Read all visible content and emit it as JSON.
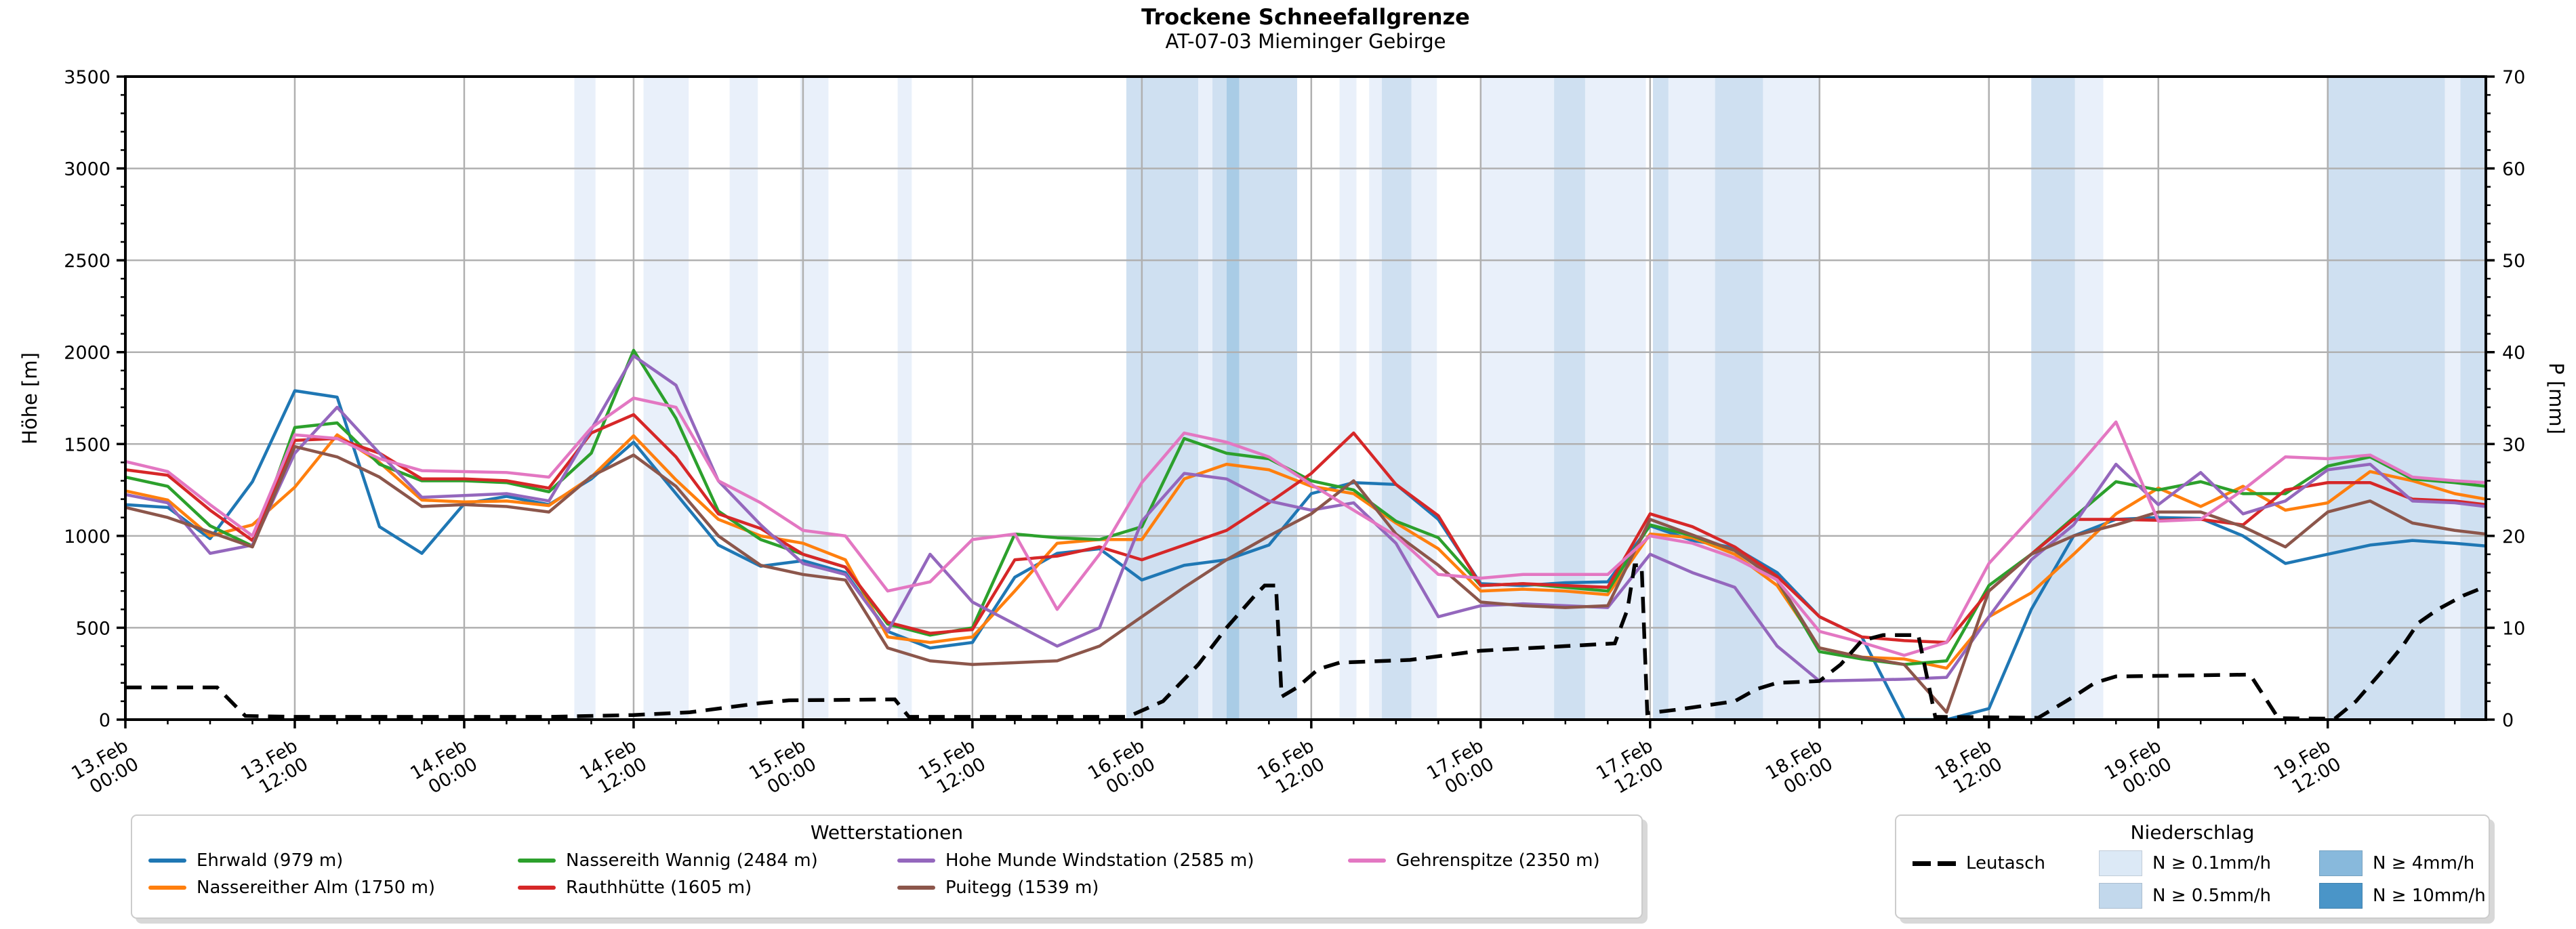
{
  "title": {
    "main": "Trockene Schneefallgrenze",
    "sub": "AT-07-03 Mieminger Gebirge"
  },
  "legends": {
    "stations": {
      "title": "Wetterstationen",
      "entries": [
        {
          "label": "Ehrwald (979 m)",
          "color": "#1f77b4"
        },
        {
          "label": "Nassereith Wannig (2484 m)",
          "color": "#2ca02c"
        },
        {
          "label": "Hohe Munde Windstation (2585 m)",
          "color": "#9467bd"
        },
        {
          "label": "Gehrenspitze (2350 m)",
          "color": "#e377c2"
        },
        {
          "label": "Nassereither Alm (1750 m)",
          "color": "#ff7f0e"
        },
        {
          "label": "Rauthhütte (1605 m)",
          "color": "#d62728"
        },
        {
          "label": "Puitegg (1539 m)",
          "color": "#8c564b"
        }
      ]
    },
    "precip": {
      "title": "Niederschlag",
      "line_entry": {
        "label": "Leutasch",
        "color": "#000000"
      },
      "patches": [
        {
          "label": "N ≥ 0.1mm/h",
          "color": "#dce9f6",
          "level": 1
        },
        {
          "label": "N ≥ 0.5mm/h",
          "color": "#c2d8ec",
          "level": 2
        },
        {
          "label": "N ≥ 4mm/h",
          "color": "#88b9dc",
          "level": 3
        },
        {
          "label": "N ≥ 10mm/h",
          "color": "#4a95c8",
          "level": 4
        }
      ]
    }
  },
  "chart_data": {
    "type": "line",
    "y_left_label": "Höhe [m]",
    "y_right_label": "P [mm]",
    "ylim_left": [
      0,
      3500
    ],
    "ylim_right": [
      0,
      70
    ],
    "y_left_ticks": [
      0,
      500,
      1000,
      1500,
      2000,
      2500,
      3000,
      3500
    ],
    "y_right_ticks": [
      0,
      10,
      20,
      30,
      40,
      50,
      60,
      70
    ],
    "x_unit": "hours since 13.Feb 00:00",
    "x_domain": [
      0,
      167.2
    ],
    "x_tick_hours": [
      0,
      12,
      24,
      36,
      48,
      60,
      72,
      84,
      96,
      108,
      120,
      132,
      144,
      156
    ],
    "x_tick_labels": [
      "13.Feb\n00:00",
      "13.Feb\n12:00",
      "14.Feb\n00:00",
      "14.Feb\n12:00",
      "15.Feb\n00:00",
      "15.Feb\n12:00",
      "16.Feb\n00:00",
      "16.Feb\n12:00",
      "17.Feb\n00:00",
      "17.Feb\n12:00",
      "18.Feb\n00:00",
      "18.Feb\n12:00",
      "19.Feb\n00:00",
      "19.Feb\n12:00"
    ],
    "x_minor_step_hours": 3,
    "y_left_minor_step": 100,
    "y_right_minor_step": 2,
    "sample_step_hours": 3,
    "series": [
      {
        "name": "ehrwald",
        "station": "Ehrwald",
        "elevation_m": 979,
        "color": "#1f77b4",
        "values_m": [
          1170,
          1155,
          985,
          1295,
          1790,
          1755,
          1050,
          905,
          1175,
          1215,
          1170,
          1310,
          1510,
          1230,
          950,
          835,
          865,
          800,
          480,
          390,
          420,
          775,
          905,
          930,
          760,
          840,
          870,
          950,
          1230,
          1290,
          1280,
          1090,
          740,
          730,
          745,
          750,
          1055,
          975,
          935,
          800,
          560,
          450,
          0,
          0,
          60,
          600,
          1000,
          1090,
          1100,
          1095,
          1000,
          850,
          900,
          950,
          975,
          960,
          945
        ]
      },
      {
        "name": "nassereither-alm",
        "station": "Nassereither Alm",
        "elevation_m": 1750,
        "color": "#ff7f0e",
        "values_m": [
          1245,
          1195,
          1000,
          1060,
          1265,
          1550,
          1400,
          1195,
          1185,
          1190,
          1165,
          1320,
          1545,
          1305,
          1090,
          1000,
          960,
          870,
          450,
          420,
          450,
          700,
          960,
          980,
          980,
          1310,
          1390,
          1360,
          1270,
          1230,
          1070,
          930,
          700,
          710,
          700,
          680,
          1010,
          990,
          900,
          730,
          390,
          340,
          330,
          280,
          560,
          690,
          900,
          1120,
          1260,
          1160,
          1270,
          1140,
          1180,
          1350,
          1300,
          1230,
          1200
        ]
      },
      {
        "name": "nassereith-wannig",
        "station": "Nassereith Wannig",
        "elevation_m": 2484,
        "color": "#2ca02c",
        "values_m": [
          1320,
          1270,
          1055,
          945,
          1590,
          1615,
          1390,
          1300,
          1300,
          1290,
          1240,
          1450,
          2010,
          1640,
          1135,
          980,
          900,
          830,
          520,
          460,
          500,
          1010,
          990,
          980,
          1050,
          1530,
          1450,
          1420,
          1300,
          1250,
          1080,
          990,
          730,
          740,
          720,
          700,
          1060,
          1000,
          920,
          760,
          370,
          330,
          300,
          320,
          730,
          900,
          1100,
          1295,
          1250,
          1295,
          1230,
          1230,
          1380,
          1430,
          1310,
          1290,
          1270
        ]
      },
      {
        "name": "rauthhuette",
        "station": "Rauthhütte",
        "elevation_m": 1605,
        "color": "#d62728",
        "values_m": [
          1360,
          1330,
          1140,
          975,
          1520,
          1530,
          1450,
          1310,
          1310,
          1300,
          1260,
          1560,
          1660,
          1430,
          1120,
          1040,
          900,
          830,
          530,
          470,
          490,
          870,
          890,
          940,
          870,
          950,
          1030,
          1180,
          1340,
          1560,
          1280,
          1110,
          730,
          740,
          730,
          720,
          1120,
          1050,
          940,
          780,
          560,
          450,
          430,
          420,
          700,
          900,
          1090,
          1090,
          1085,
          1090,
          1060,
          1250,
          1290,
          1290,
          1200,
          1190,
          1170
        ]
      },
      {
        "name": "hohe-munde-windstation",
        "station": "Hohe Munde Windstation",
        "elevation_m": 2585,
        "color": "#9467bd",
        "values_m": [
          1225,
          1180,
          905,
          950,
          1450,
          1700,
          1450,
          1210,
          1220,
          1230,
          1190,
          1580,
          1980,
          1820,
          1300,
          1060,
          850,
          790,
          480,
          900,
          640,
          520,
          400,
          500,
          1080,
          1340,
          1310,
          1190,
          1140,
          1180,
          960,
          560,
          620,
          630,
          620,
          610,
          900,
          800,
          720,
          400,
          210,
          215,
          220,
          230,
          560,
          870,
          1060,
          1390,
          1170,
          1345,
          1120,
          1190,
          1360,
          1390,
          1190,
          1180,
          1160
        ]
      },
      {
        "name": "puitegg",
        "station": "Puitegg",
        "elevation_m": 1539,
        "color": "#8c564b",
        "values_m": [
          1155,
          1100,
          1020,
          940,
          1486,
          1430,
          1320,
          1160,
          1170,
          1160,
          1130,
          1324,
          1440,
          1270,
          1000,
          840,
          790,
          760,
          390,
          320,
          300,
          310,
          320,
          400,
          560,
          720,
          870,
          1000,
          1120,
          1300,
          1010,
          840,
          640,
          620,
          610,
          620,
          1090,
          1005,
          920,
          760,
          390,
          340,
          300,
          40,
          700,
          900,
          1000,
          1060,
          1130,
          1130,
          1050,
          940,
          1130,
          1190,
          1070,
          1030,
          1010
        ]
      },
      {
        "name": "gehrenspitze",
        "station": "Gehrenspitze",
        "elevation_m": 2350,
        "color": "#e377c2",
        "values_m": [
          1405,
          1350,
          1170,
          1000,
          1550,
          1530,
          1420,
          1355,
          1350,
          1345,
          1320,
          1588,
          1750,
          1700,
          1300,
          1180,
          1030,
          1000,
          700,
          750,
          980,
          1010,
          600,
          900,
          1290,
          1560,
          1510,
          1430,
          1280,
          1140,
          1000,
          790,
          770,
          790,
          790,
          790,
          1000,
          960,
          880,
          760,
          480,
          420,
          350,
          420,
          850,
          1100,
          1350,
          1620,
          1080,
          1090,
          1250,
          1430,
          1420,
          1440,
          1320,
          1300,
          1290
        ]
      }
    ],
    "leutasch": {
      "name": "Leutasch",
      "color": "#000000",
      "unit": "mm",
      "dashed": true,
      "points_h_mm": [
        [
          0,
          3.5
        ],
        [
          6.5,
          3.5
        ],
        [
          8.5,
          0.4
        ],
        [
          12,
          0.3
        ],
        [
          30,
          0.3
        ],
        [
          36,
          0.5
        ],
        [
          40,
          0.8
        ],
        [
          45,
          1.8
        ],
        [
          47,
          2.1
        ],
        [
          54.5,
          2.2
        ],
        [
          55.5,
          0.3
        ],
        [
          71,
          0.3
        ],
        [
          73.5,
          2.0
        ],
        [
          76,
          6.0
        ],
        [
          78,
          10.0
        ],
        [
          80,
          13.5
        ],
        [
          80.7,
          14.6
        ],
        [
          81.5,
          14.6
        ],
        [
          81.9,
          2.5
        ],
        [
          83,
          3.5
        ],
        [
          84.5,
          5.5
        ],
        [
          86,
          6.2
        ],
        [
          91,
          6.5
        ],
        [
          96,
          7.5
        ],
        [
          102,
          8.0
        ],
        [
          105.5,
          8.3
        ],
        [
          106.4,
          12.0
        ],
        [
          106.9,
          16.8
        ],
        [
          107.4,
          16.8
        ],
        [
          107.8,
          0.7
        ],
        [
          110,
          1.1
        ],
        [
          114,
          2.0
        ],
        [
          115.5,
          3.3
        ],
        [
          117,
          4.0
        ],
        [
          120,
          4.2
        ],
        [
          121.5,
          6.0
        ],
        [
          123,
          8.6
        ],
        [
          124.5,
          9.2
        ],
        [
          127,
          9.2
        ],
        [
          128.2,
          0.3
        ],
        [
          135.5,
          0.2
        ],
        [
          138,
          2.5
        ],
        [
          139.5,
          4.0
        ],
        [
          141,
          4.7
        ],
        [
          150.5,
          4.9
        ],
        [
          152.5,
          0.15
        ],
        [
          156.5,
          0.1
        ],
        [
          158,
          2.0
        ],
        [
          159.7,
          5.0
        ],
        [
          161.3,
          8.0
        ],
        [
          162.4,
          10.5
        ],
        [
          163.8,
          12.0
        ],
        [
          165.6,
          13.5
        ],
        [
          167.2,
          14.5
        ]
      ]
    },
    "precip_bands_h": [
      [
        31.8,
        33.3,
        1
      ],
      [
        36.7,
        39.9,
        1
      ],
      [
        42.8,
        44.8,
        1
      ],
      [
        47.8,
        49.8,
        1
      ],
      [
        54.7,
        55.7,
        1
      ],
      [
        70.9,
        76.0,
        2
      ],
      [
        76.0,
        77.0,
        1
      ],
      [
        77.0,
        78.0,
        2
      ],
      [
        78.0,
        78.9,
        3
      ],
      [
        78.9,
        83.0,
        2
      ],
      [
        86.0,
        87.2,
        1
      ],
      [
        88.1,
        89.0,
        1
      ],
      [
        89.0,
        91.1,
        2
      ],
      [
        91.1,
        92.9,
        1
      ],
      [
        96.0,
        101.2,
        1
      ],
      [
        101.2,
        103.4,
        2
      ],
      [
        103.4,
        107.7,
        1
      ],
      [
        108.2,
        109.3,
        2
      ],
      [
        109.3,
        112.6,
        1
      ],
      [
        112.6,
        116.0,
        2
      ],
      [
        116.0,
        120.0,
        1
      ],
      [
        135.0,
        138.1,
        2
      ],
      [
        138.1,
        140.1,
        1
      ],
      [
        156.0,
        164.3,
        2
      ],
      [
        164.3,
        165.4,
        1
      ],
      [
        165.4,
        167.2,
        2
      ]
    ],
    "band_fill_colors": {
      "1": "#e9f0fa",
      "2": "#cfe0f1",
      "3": "#a9cce6",
      "4": "#4e97c8"
    },
    "grid": true,
    "legend_positions": {
      "stations": "bottom-left",
      "precip": "bottom-right"
    }
  }
}
